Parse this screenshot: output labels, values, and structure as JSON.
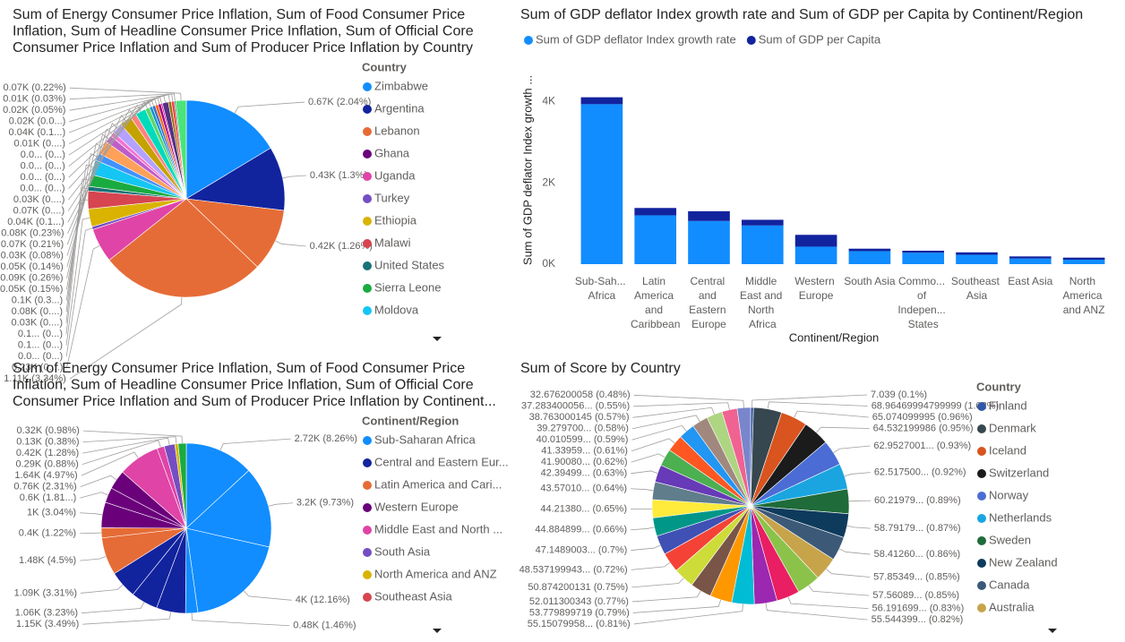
{
  "chart_data": [
    {
      "type": "pie",
      "title": "Sum of Energy Consumer Price Inflation, Sum of Food Consumer Price Inflation, Sum of Headline Consumer Price Inflation, Sum of Official Core Consumer Price Inflation and Sum of Producer Price Inflation by Country",
      "legend_title": "Country",
      "legend": [
        {
          "name": "Zimbabwe",
          "color": "#118DFF"
        },
        {
          "name": "Argentina",
          "color": "#12239E"
        },
        {
          "name": "Lebanon",
          "color": "#E66C37"
        },
        {
          "name": "Ghana",
          "color": "#6B007B"
        },
        {
          "name": "Uganda",
          "color": "#E044A7"
        },
        {
          "name": "Turkey",
          "color": "#744EC2"
        },
        {
          "name": "Ethiopia",
          "color": "#D9B300"
        },
        {
          "name": "Malawi",
          "color": "#D64550"
        },
        {
          "name": "United States",
          "color": "#197278"
        },
        {
          "name": "Sierra Leone",
          "color": "#1AAB40"
        },
        {
          "name": "Moldova",
          "color": "#15C6F4"
        }
      ],
      "values": [
        670,
        430,
        420,
        1110,
        230,
        20,
        120,
        120,
        30,
        80,
        100,
        50,
        90,
        50,
        30,
        70,
        80,
        40,
        70,
        30,
        20,
        20,
        20,
        20,
        10,
        40,
        20,
        20,
        10,
        70
      ],
      "value_labels": [
        "0.67K (2.04%)",
        "0.43K (1.3%)",
        "0.42K (1.26%)",
        "1.11K (3.34%)",
        "0.23K (0....)",
        "0.0... (0...)",
        "0.1... (0...)",
        "0.1... (0...)",
        "0.03K (0....)",
        "0.08K (0....)",
        "0.1K (0.3...)",
        "0.05K (0.15%)",
        "0.09K (0.26%)",
        "0.05K (0.14%)",
        "0.03K (0.08%)",
        "0.07K (0.21%)",
        "0.08K (0.23%)",
        "0.04K (0.1...)",
        "0.07K (0....)",
        "0.03K (0....)",
        "0.0... (0...)",
        "0.0... (0...)",
        "0.0... (0...)",
        "0.0... (0...)",
        "0.01K (0....)",
        "0.04K (0.1...)",
        "0.02K (0.0...)",
        "0.02K (0.05%)",
        "0.01K (0.03%)",
        "0.07K (0.22%)"
      ],
      "colors": [
        "#118DFF",
        "#12239E",
        "#E66C37",
        "#E66C37",
        "#E044A7",
        "#744EC2",
        "#D9B300",
        "#D64550",
        "#197278",
        "#1AAB40",
        "#15C6F4",
        "#4092FF",
        "#FFA058",
        "#BE5DC9",
        "#F472D0",
        "#B5A1FF",
        "#C4A200",
        "#FF8080",
        "#00DBBC",
        "#5BD667",
        "#0091D5",
        "#4668C5",
        "#FF6300",
        "#99008A",
        "#EC008C",
        "#533285",
        "#99700A",
        "#FF4141",
        "#1F9A85",
        "#4BE37A"
      ]
    },
    {
      "type": "bar",
      "stacked": true,
      "title": "Sum of GDP deflator Index growth rate and Sum of GDP per Capita by Continent/Region",
      "x_label": "Continent/Region",
      "y_label": "Sum of GDP deflator Index growth ...",
      "categories": [
        "Sub-Sah... Africa",
        "Latin America and Caribbean",
        "Central and Eastern Europe",
        "Middle East and North Africa",
        "Western Europe",
        "South Asia",
        "Commo... of Indepen... States",
        "Southeast Asia",
        "East Asia",
        "North America and ANZ"
      ],
      "series": [
        {
          "name": "Sum of GDP deflator Index growth rate",
          "color": "#118DFF",
          "values": [
            3930,
            1200,
            1060,
            950,
            430,
            320,
            280,
            230,
            140,
            110
          ]
        },
        {
          "name": "Sum of GDP per Capita",
          "color": "#12239E",
          "values": [
            170,
            180,
            240,
            140,
            290,
            60,
            50,
            60,
            50,
            50
          ]
        }
      ],
      "ylim": [
        0,
        4400
      ],
      "yticks": [
        {
          "value": 0,
          "label": "0K"
        },
        {
          "value": 2000,
          "label": "2K"
        },
        {
          "value": 4000,
          "label": "4K"
        }
      ]
    },
    {
      "type": "pie",
      "title": "Sum of Energy Consumer Price Inflation, Sum of Food Consumer Price Inflation, Sum of Headline Consumer Price Inflation, Sum of Official Core Consumer Price Inflation and Sum of Producer Price Inflation by Continent...",
      "legend_title": "Continent/Region",
      "legend": [
        {
          "name": "Sub-Saharan Africa",
          "color": "#118DFF"
        },
        {
          "name": "Central and Eastern Eur...",
          "color": "#12239E"
        },
        {
          "name": "Latin America and Cari...",
          "color": "#E66C37"
        },
        {
          "name": "Western Europe",
          "color": "#6B007B"
        },
        {
          "name": "Middle East and North ...",
          "color": "#E044A7"
        },
        {
          "name": "South Asia",
          "color": "#744EC2"
        },
        {
          "name": "North America and ANZ",
          "color": "#D9B300"
        },
        {
          "name": "Southeast Asia",
          "color": "#D64550"
        }
      ],
      "values": [
        2720,
        3200,
        4000,
        480,
        1150,
        1060,
        1090,
        1480,
        400,
        1000,
        600,
        760,
        1640,
        290,
        420,
        130,
        320
      ],
      "value_labels": [
        "2.72K (8.26%)",
        "3.2K (9.73%)",
        "4K (12.16%)",
        "0.48K (1.46%)",
        "1.15K (3.49%)",
        "1.06K (3.23%)",
        "1.09K (3.31%)",
        "1.48K (4.5%)",
        "0.4K (1.22%)",
        "1K (3.04%)",
        "0.6K (1.81...)",
        "0.76K (2.31%)",
        "1.64K (4.97%)",
        "0.29K (0.88%)",
        "0.42K (1.28%)",
        "0.13K (0.38%)",
        "0.32K (0.98%)"
      ],
      "colors": [
        "#118DFF",
        "#118DFF",
        "#118DFF",
        "#118DFF",
        "#12239E",
        "#12239E",
        "#12239E",
        "#E66C37",
        "#E66C37",
        "#6B007B",
        "#6B007B",
        "#6B007B",
        "#E044A7",
        "#E044A7",
        "#744EC2",
        "#D9B300",
        "#1AAB40"
      ]
    },
    {
      "type": "pie",
      "title": "Sum of Score by Country",
      "legend_title": "Country",
      "legend": [
        {
          "name": "Finland",
          "color": "#3257A8"
        },
        {
          "name": "Denmark",
          "color": "#37474F"
        },
        {
          "name": "Iceland",
          "color": "#D9541E"
        },
        {
          "name": "Switzerland",
          "color": "#1B1B1B"
        },
        {
          "name": "Norway",
          "color": "#4A6CD4"
        },
        {
          "name": "Netherlands",
          "color": "#1AA5E0"
        },
        {
          "name": "Sweden",
          "color": "#1F6B3A"
        },
        {
          "name": "New Zealand",
          "color": "#0E3B5C"
        },
        {
          "name": "Canada",
          "color": "#3C5A78"
        },
        {
          "name": "Australia",
          "color": "#C7A44A"
        }
      ],
      "values": [
        7.039,
        68.96469994799999,
        65.074099995,
        64.532199986,
        62.9527001,
        62.5175,
        60.21979,
        58.79179,
        58.4126,
        57.85349,
        57.56089,
        56.191699,
        55.544399,
        55.15079958,
        53.779899719,
        52.011300343,
        50.874200131,
        48.537199943,
        47.1489003,
        44.884899,
        44.2138,
        43.5701,
        42.39499,
        41.9008,
        41.33959,
        40.010599,
        39.2797,
        38.763000145,
        37.283400056,
        32.676200058
      ],
      "value_labels": [
        "7.039 (0.1%)",
        "68.96469994799999 (1.02%)",
        "65.074099995 (0.96%)",
        "64.532199986 (0.95%)",
        "62.9527001... (0.93%)",
        "62.517500... (0.92%)",
        "60.21979... (0.89%)",
        "58.79179... (0.87%)",
        "58.41260... (0.86%)",
        "57.85349... (0.85%)",
        "57.56089... (0.85%)",
        "56.191699... (0.83%)",
        "55.544399... (0.82%)",
        "55.15079958... (0.81%)",
        "53.779899719 (0.79%)",
        "52.011300343 (0.77%)",
        "50.874200131 (0.75%)",
        "48.537199943... (0.72%)",
        "47.1489003... (0.7%)",
        "44.884899... (0.66%)",
        "44.21380... (0.65%)",
        "43.57010... (0.64%)",
        "42.39499... (0.63%)",
        "41.90080... (0.62%)",
        "41.33959... (0.61%)",
        "40.010599... (0.59%)",
        "39.279700... (0.58%)",
        "38.763000145 (0.57%)",
        "37.283400056... (0.55%)",
        "32.676200058 (0.48%)"
      ],
      "colors": [
        "#3257A8",
        "#37474F",
        "#D9541E",
        "#1B1B1B",
        "#4A6CD4",
        "#1AA5E0",
        "#1F6B3A",
        "#0E3B5C",
        "#3C5A78",
        "#C7A44A",
        "#8BC34A",
        "#E91E63",
        "#9C27B0",
        "#00BCD4",
        "#FF9800",
        "#795548",
        "#CDDC39",
        "#F44336",
        "#3F51B5",
        "#009688",
        "#FFEB3B",
        "#607D8B",
        "#673AB7",
        "#4CAF50",
        "#FF5722",
        "#2196F3",
        "#A1887F",
        "#AED581",
        "#F06292",
        "#7986CB"
      ]
    }
  ]
}
